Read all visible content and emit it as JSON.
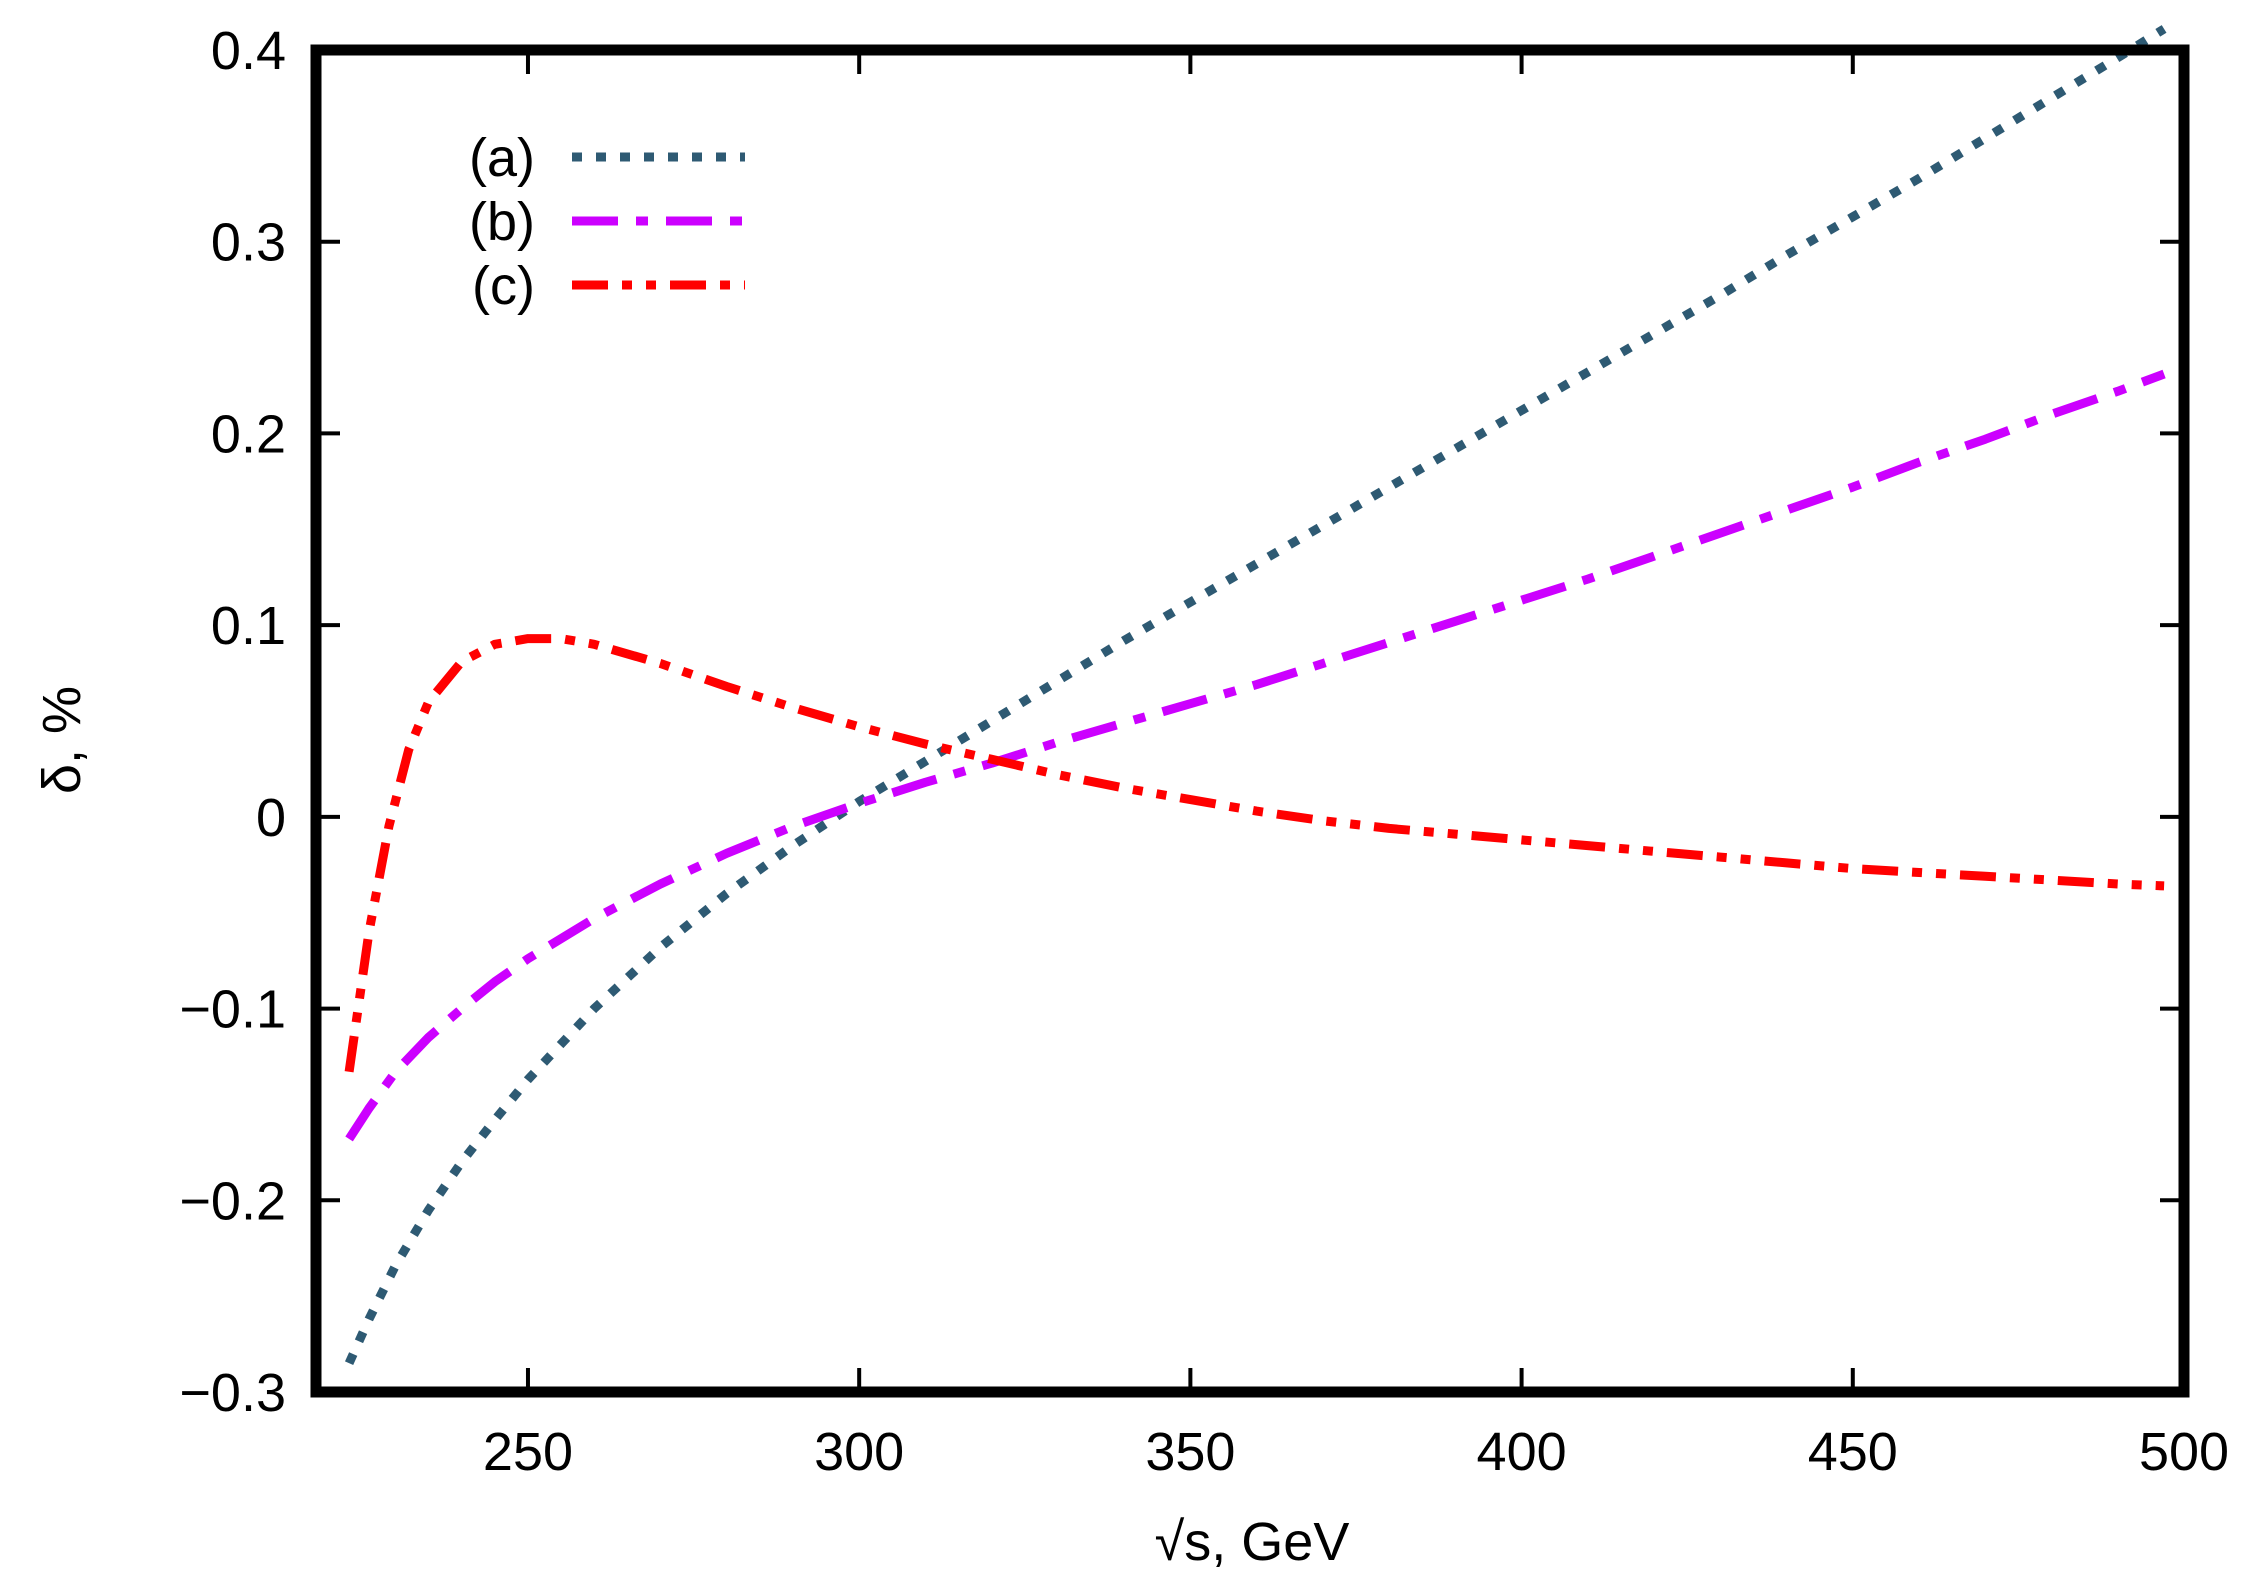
{
  "chart_data": {
    "type": "line",
    "title": "",
    "xlabel": "√s, GeV",
    "ylabel": "δ, %",
    "xlim": [
      218,
      500
    ],
    "ylim": [
      -0.3,
      0.4
    ],
    "xticks": [
      250,
      300,
      350,
      400,
      450,
      500
    ],
    "xtick_labels": [
      "250",
      "300",
      "350",
      "400",
      "450",
      "500"
    ],
    "yticks": [
      -0.3,
      -0.2,
      -0.1,
      0,
      0.1,
      0.2,
      0.3,
      0.4
    ],
    "ytick_labels": [
      "−0.3",
      "−0.2",
      "−0.1",
      "0",
      "0.1",
      "0.2",
      "0.3",
      "0.4"
    ],
    "grid": false,
    "legend_position": "top-left",
    "series": [
      {
        "name": "(a)",
        "color": "#2e5a73",
        "style": "dotted",
        "x": [
          223,
          226,
          230,
          235,
          240,
          245,
          250,
          260,
          270,
          280,
          290,
          300,
          310,
          320,
          330,
          340,
          350,
          360,
          370,
          380,
          390,
          400,
          410,
          420,
          430,
          440,
          450,
          460,
          470,
          480,
          490,
          497
        ],
        "y": [
          -0.285,
          -0.262,
          -0.234,
          -0.205,
          -0.18,
          -0.158,
          -0.137,
          -0.1,
          -0.068,
          -0.04,
          -0.015,
          0.008,
          0.029,
          0.05,
          0.071,
          0.092,
          0.112,
          0.132,
          0.152,
          0.172,
          0.192,
          0.212,
          0.232,
          0.252,
          0.272,
          0.293,
          0.313,
          0.333,
          0.354,
          0.375,
          0.396,
          0.411
        ]
      },
      {
        "name": "(b)",
        "color": "#cc00ff",
        "style": "dash-dot",
        "x": [
          223,
          226,
          230,
          235,
          240,
          245,
          250,
          260,
          270,
          280,
          290,
          300,
          310,
          320,
          330,
          340,
          350,
          360,
          370,
          380,
          390,
          400,
          410,
          420,
          430,
          440,
          450,
          460,
          470,
          480,
          490,
          497
        ],
        "y": [
          -0.168,
          -0.152,
          -0.133,
          -0.115,
          -0.1,
          -0.086,
          -0.074,
          -0.053,
          -0.035,
          -0.019,
          -0.005,
          0.007,
          0.018,
          0.028,
          0.039,
          0.049,
          0.059,
          0.069,
          0.08,
          0.091,
          0.102,
          0.113,
          0.124,
          0.136,
          0.148,
          0.16,
          0.172,
          0.185,
          0.197,
          0.21,
          0.222,
          0.231
        ]
      },
      {
        "name": "(c)",
        "color": "#ff0000",
        "style": "dash-dot-dot",
        "x": [
          223,
          226,
          229,
          232,
          235,
          240,
          245,
          250,
          255,
          260,
          270,
          280,
          290,
          300,
          310,
          320,
          330,
          340,
          350,
          360,
          370,
          380,
          390,
          400,
          410,
          420,
          430,
          440,
          450,
          460,
          470,
          480,
          490,
          497
        ],
        "y": [
          -0.133,
          -0.06,
          -0.005,
          0.035,
          0.06,
          0.081,
          0.09,
          0.093,
          0.093,
          0.09,
          0.08,
          0.068,
          0.057,
          0.047,
          0.038,
          0.03,
          0.022,
          0.015,
          0.009,
          0.003,
          -0.002,
          -0.006,
          -0.009,
          -0.012,
          -0.015,
          -0.018,
          -0.021,
          -0.024,
          -0.027,
          -0.029,
          -0.031,
          -0.033,
          -0.035,
          -0.036
        ]
      }
    ]
  }
}
